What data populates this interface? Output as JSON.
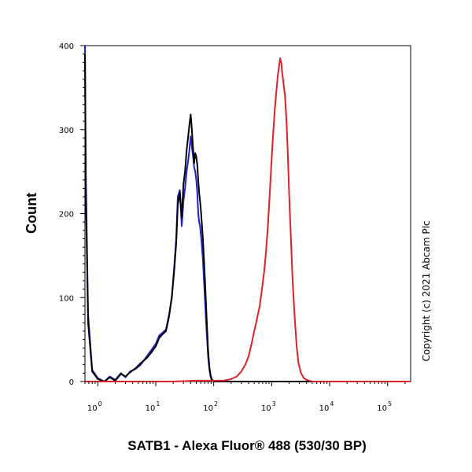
{
  "chart_data": {
    "type": "line",
    "title": "",
    "xlabel": "SATB1 - Alexa Fluor® 488 (530/30 BP)",
    "ylabel": "Count",
    "xscale": "log",
    "xlim": [
      0.6,
      250000
    ],
    "ylim": [
      0,
      400
    ],
    "x_ticks": [
      {
        "base": "10",
        "exp": "0",
        "value": 1
      },
      {
        "base": "10",
        "exp": "1",
        "value": 10
      },
      {
        "base": "10",
        "exp": "2",
        "value": 100
      },
      {
        "base": "10",
        "exp": "3",
        "value": 1000
      },
      {
        "base": "10",
        "exp": "4",
        "value": 10000
      },
      {
        "base": "10",
        "exp": "5",
        "value": 100000
      }
    ],
    "y_ticks": [
      "0",
      "100",
      "200",
      "300",
      "400"
    ],
    "y_tick_values": [
      0,
      100,
      200,
      300,
      400
    ],
    "grid": false,
    "legend": "none",
    "annotation": "Copyright (c) 2021 Abcam Plc",
    "series": [
      {
        "color": "#1e22c8",
        "x": [
          0.6,
          0.62,
          0.68,
          0.8,
          1.0,
          1.3,
          1.6,
          2.0,
          2.5,
          3.0,
          3.6,
          4.5,
          5.5,
          7.0,
          8.5,
          10,
          11.5,
          13,
          15,
          17,
          19,
          21,
          22.5,
          24,
          26,
          28,
          30,
          32,
          34,
          36,
          38,
          40,
          42,
          44,
          46,
          48,
          50,
          52,
          54,
          56,
          58,
          60,
          62,
          65,
          68,
          71,
          74,
          77,
          80,
          84,
          88,
          92,
          97,
          103,
          110,
          130,
          200,
          1000,
          10000,
          250000
        ],
        "y": [
          400,
          250,
          80,
          14,
          4,
          0,
          6,
          2,
          10,
          5,
          12,
          15,
          20,
          30,
          38,
          45,
          55,
          58,
          62,
          80,
          100,
          140,
          170,
          220,
          228,
          185,
          215,
          230,
          250,
          262,
          275,
          292,
          280,
          268,
          255,
          250,
          240,
          225,
          200,
          190,
          185,
          175,
          165,
          145,
          120,
          95,
          70,
          50,
          30,
          15,
          6,
          2,
          1,
          0,
          0,
          0,
          0,
          0,
          0,
          0
        ]
      },
      {
        "color": "#000000",
        "x": [
          0.6,
          0.62,
          0.68,
          0.8,
          1.0,
          1.3,
          1.6,
          2.0,
          2.5,
          3.0,
          3.6,
          4.5,
          5.5,
          7.0,
          8.5,
          10,
          11.5,
          13,
          15,
          17,
          19,
          21,
          22.5,
          24,
          26,
          28,
          30,
          32,
          34,
          36,
          38,
          40,
          42,
          44,
          46,
          48,
          50,
          52,
          54,
          56,
          58,
          60,
          62,
          65,
          68,
          71,
          74,
          77,
          80,
          84,
          88,
          92,
          97,
          103,
          110,
          130,
          200,
          1000,
          10000,
          250000
        ],
        "y": [
          390,
          230,
          70,
          12,
          3,
          0,
          5,
          1,
          9,
          6,
          11,
          16,
          22,
          28,
          35,
          42,
          52,
          56,
          60,
          78,
          102,
          135,
          165,
          210,
          225,
          195,
          235,
          250,
          275,
          290,
          305,
          318,
          300,
          278,
          260,
          272,
          268,
          258,
          240,
          225,
          215,
          205,
          190,
          170,
          145,
          118,
          90,
          62,
          38,
          18,
          8,
          3,
          1,
          0,
          0,
          0,
          0,
          0,
          0,
          0
        ]
      },
      {
        "color": "#e0202a",
        "x": [
          0.6,
          1,
          10,
          20,
          50,
          80,
          110,
          150,
          200,
          250,
          300,
          350,
          400,
          450,
          500,
          560,
          620,
          680,
          740,
          800,
          860,
          920,
          980,
          1050,
          1120,
          1200,
          1280,
          1340,
          1400,
          1460,
          1520,
          1600,
          1700,
          1800,
          1900,
          2000,
          2150,
          2300,
          2500,
          2700,
          2900,
          3200,
          3600,
          4000,
          5000,
          7000,
          10000,
          250000
        ],
        "y": [
          0,
          0,
          0,
          0,
          1,
          1,
          1,
          1,
          3,
          6,
          12,
          20,
          30,
          45,
          60,
          75,
          90,
          110,
          130,
          155,
          185,
          220,
          255,
          290,
          320,
          345,
          365,
          375,
          385,
          380,
          368,
          355,
          340,
          310,
          270,
          225,
          170,
          120,
          75,
          42,
          22,
          10,
          4,
          2,
          0,
          0,
          0,
          0
        ]
      }
    ]
  }
}
